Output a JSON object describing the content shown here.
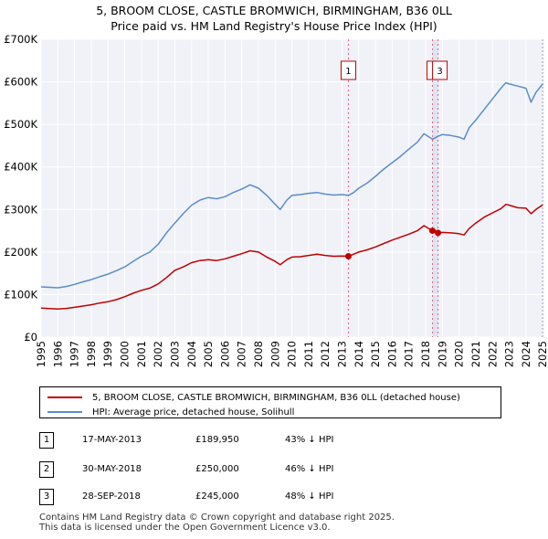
{
  "title_line1": "5, BROOM CLOSE, CASTLE BROMWICH, BIRMINGHAM, B36 0LL",
  "title_line2": "Price paid vs. HM Land Registry's House Price Index (HPI)",
  "chart_data": {
    "type": "line",
    "xlim": [
      1995,
      2025.1
    ],
    "ylim": [
      0,
      700000
    ],
    "yticks": [
      {
        "value": 0,
        "label": "£0"
      },
      {
        "value": 100000,
        "label": "£100K"
      },
      {
        "value": 200000,
        "label": "£200K"
      },
      {
        "value": 300000,
        "label": "£300K"
      },
      {
        "value": 400000,
        "label": "£400K"
      },
      {
        "value": 500000,
        "label": "£500K"
      },
      {
        "value": 600000,
        "label": "£600K"
      },
      {
        "value": 700000,
        "label": "£700K"
      }
    ],
    "xticks": [
      "1995",
      "1996",
      "1997",
      "1998",
      "1999",
      "2000",
      "2001",
      "2002",
      "2003",
      "2004",
      "2005",
      "2006",
      "2007",
      "2008",
      "2009",
      "2010",
      "2011",
      "2012",
      "2013",
      "2014",
      "2015",
      "2016",
      "2017",
      "2018",
      "2019",
      "2020",
      "2021",
      "2022",
      "2023",
      "2024",
      "2025"
    ],
    "grid": true,
    "series": [
      {
        "name": "5, BROOM CLOSE, CASTLE BROMWICH, BIRMINGHAM, B36 0LL (detached house)",
        "color": "#c00000",
        "points": [
          [
            1995.0,
            68000
          ],
          [
            1995.5,
            67000
          ],
          [
            1996.0,
            66000
          ],
          [
            1996.5,
            67500
          ],
          [
            1997.0,
            70000
          ],
          [
            1997.5,
            73000
          ],
          [
            1998.0,
            76000
          ],
          [
            1998.5,
            80000
          ],
          [
            1999.0,
            83000
          ],
          [
            1999.5,
            88000
          ],
          [
            2000.0,
            95000
          ],
          [
            2000.5,
            103000
          ],
          [
            2001.0,
            110000
          ],
          [
            2001.5,
            115000
          ],
          [
            2002.0,
            125000
          ],
          [
            2002.5,
            140000
          ],
          [
            2003.0,
            157000
          ],
          [
            2003.5,
            165000
          ],
          [
            2004.0,
            175000
          ],
          [
            2004.5,
            180000
          ],
          [
            2005.0,
            182000
          ],
          [
            2005.5,
            180000
          ],
          [
            2006.0,
            184000
          ],
          [
            2006.5,
            190000
          ],
          [
            2007.0,
            196000
          ],
          [
            2007.5,
            203000
          ],
          [
            2008.0,
            200000
          ],
          [
            2008.5,
            188000
          ],
          [
            2009.0,
            178000
          ],
          [
            2009.3,
            170000
          ],
          [
            2009.7,
            182000
          ],
          [
            2010.0,
            188000
          ],
          [
            2010.5,
            189000
          ],
          [
            2011.0,
            192000
          ],
          [
            2011.5,
            195000
          ],
          [
            2012.0,
            192000
          ],
          [
            2012.5,
            190000
          ],
          [
            2013.0,
            190500
          ],
          [
            2013.38,
            189950
          ],
          [
            2013.7,
            195000
          ],
          [
            2014.0,
            200000
          ],
          [
            2014.5,
            205000
          ],
          [
            2015.0,
            212000
          ],
          [
            2015.5,
            220000
          ],
          [
            2016.0,
            228000
          ],
          [
            2016.5,
            235000
          ],
          [
            2017.0,
            242000
          ],
          [
            2017.5,
            250000
          ],
          [
            2017.9,
            262000
          ],
          [
            2018.41,
            250000
          ],
          [
            2018.74,
            245000
          ],
          [
            2019.0,
            246000
          ],
          [
            2019.5,
            245000
          ],
          [
            2020.0,
            243000
          ],
          [
            2020.3,
            240000
          ],
          [
            2020.6,
            255000
          ],
          [
            2021.0,
            268000
          ],
          [
            2021.5,
            282000
          ],
          [
            2022.0,
            292000
          ],
          [
            2022.5,
            302000
          ],
          [
            2022.8,
            312000
          ],
          [
            2023.0,
            310000
          ],
          [
            2023.5,
            304000
          ],
          [
            2024.0,
            303000
          ],
          [
            2024.3,
            290000
          ],
          [
            2024.6,
            300000
          ],
          [
            2025.0,
            311000
          ]
        ]
      },
      {
        "name": "HPI: Average price, detached house, Solihull",
        "color": "#5b8dc9",
        "points": [
          [
            1995.0,
            118000
          ],
          [
            1995.5,
            117000
          ],
          [
            1996.0,
            116000
          ],
          [
            1996.5,
            119000
          ],
          [
            1997.0,
            124000
          ],
          [
            1997.5,
            130000
          ],
          [
            1998.0,
            135000
          ],
          [
            1998.5,
            142000
          ],
          [
            1999.0,
            148000
          ],
          [
            1999.5,
            156000
          ],
          [
            2000.0,
            165000
          ],
          [
            2000.5,
            178000
          ],
          [
            2001.0,
            190000
          ],
          [
            2001.5,
            200000
          ],
          [
            2002.0,
            218000
          ],
          [
            2002.5,
            245000
          ],
          [
            2003.0,
            268000
          ],
          [
            2003.5,
            290000
          ],
          [
            2004.0,
            310000
          ],
          [
            2004.5,
            322000
          ],
          [
            2005.0,
            328000
          ],
          [
            2005.5,
            325000
          ],
          [
            2006.0,
            330000
          ],
          [
            2006.5,
            340000
          ],
          [
            2007.0,
            348000
          ],
          [
            2007.5,
            358000
          ],
          [
            2008.0,
            350000
          ],
          [
            2008.5,
            333000
          ],
          [
            2009.0,
            312000
          ],
          [
            2009.3,
            300000
          ],
          [
            2009.7,
            322000
          ],
          [
            2010.0,
            333000
          ],
          [
            2010.5,
            335000
          ],
          [
            2011.0,
            338000
          ],
          [
            2011.5,
            340000
          ],
          [
            2012.0,
            336000
          ],
          [
            2012.5,
            334000
          ],
          [
            2013.0,
            335000
          ],
          [
            2013.38,
            333000
          ],
          [
            2013.7,
            340000
          ],
          [
            2014.0,
            350000
          ],
          [
            2014.5,
            362000
          ],
          [
            2015.0,
            378000
          ],
          [
            2015.5,
            395000
          ],
          [
            2016.0,
            410000
          ],
          [
            2016.5,
            425000
          ],
          [
            2017.0,
            442000
          ],
          [
            2017.5,
            458000
          ],
          [
            2017.9,
            478000
          ],
          [
            2018.41,
            465000
          ],
          [
            2018.74,
            472000
          ],
          [
            2019.0,
            476000
          ],
          [
            2019.5,
            474000
          ],
          [
            2020.0,
            470000
          ],
          [
            2020.3,
            465000
          ],
          [
            2020.6,
            492000
          ],
          [
            2021.0,
            510000
          ],
          [
            2021.5,
            535000
          ],
          [
            2022.0,
            560000
          ],
          [
            2022.5,
            585000
          ],
          [
            2022.8,
            598000
          ],
          [
            2023.0,
            595000
          ],
          [
            2023.5,
            590000
          ],
          [
            2024.0,
            585000
          ],
          [
            2024.3,
            552000
          ],
          [
            2024.6,
            575000
          ],
          [
            2025.0,
            595000
          ]
        ]
      }
    ],
    "transactions": [
      {
        "marker": "1",
        "date": "17-MAY-2013",
        "x": 2013.38,
        "price": 189950,
        "price_label": "£189,950",
        "hpi_label": "43% ↓ HPI"
      },
      {
        "marker": "2",
        "date": "30-MAY-2018",
        "x": 2018.41,
        "price": 250000,
        "price_label": "£250,000",
        "hpi_label": "46% ↓ HPI"
      },
      {
        "marker": "3",
        "date": "28-SEP-2018",
        "x": 2018.74,
        "price": 245000,
        "price_label": "£245,000",
        "hpi_label": "48% ↓ HPI"
      }
    ]
  },
  "legend": {
    "property_label": "5, BROOM CLOSE, CASTLE BROMWICH, BIRMINGHAM, B36 0LL (detached house)",
    "hpi_label": "HPI: Average price, detached house, Solihull",
    "property_color": "#c00000",
    "hpi_color": "#5b8dc9"
  },
  "footer_line1": "Contains HM Land Registry data © Crown copyright and database right 2025.",
  "footer_line2": "This data is licensed under the Open Government Licence v3.0."
}
